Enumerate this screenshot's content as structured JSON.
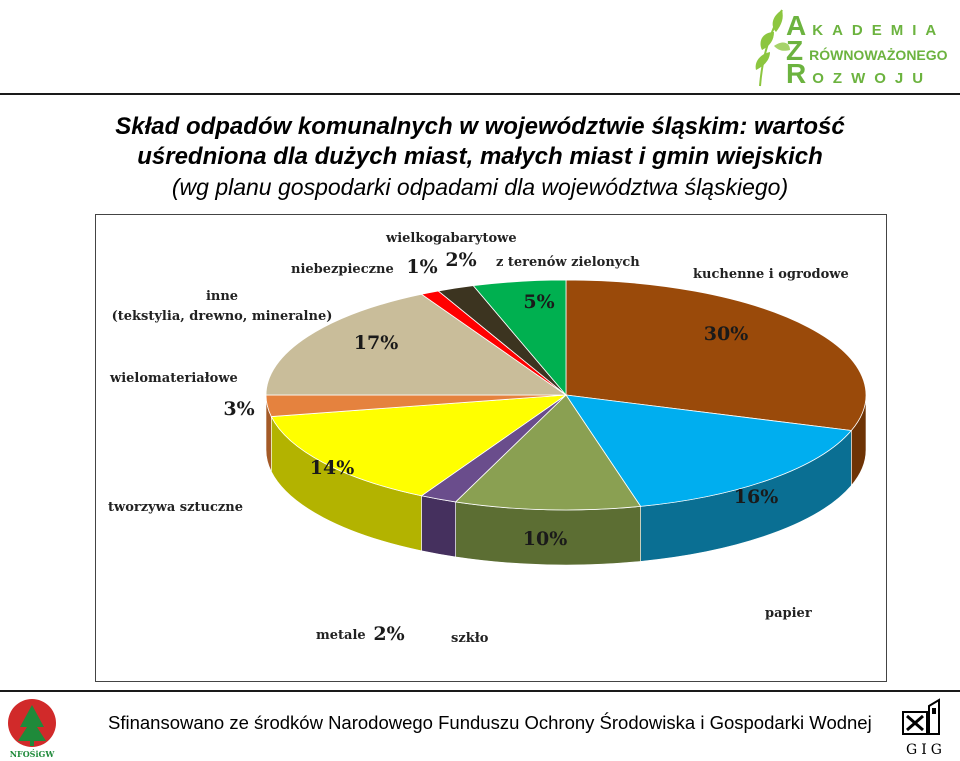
{
  "brand": {
    "letters": [
      "A",
      "Z",
      "R"
    ],
    "words": [
      "KADEMIA",
      "RÓWNOWAŻONEGO",
      "OZWOJU"
    ]
  },
  "title": {
    "line1": "Skład odpadów komunalnych w województwie śląskim: wartość",
    "line2": "uśredniona dla dużych miast, małych miast i gmin wiejskich",
    "line3": "(wg planu gospodarki odpadami dla województwa śląskiego)"
  },
  "chart_data": {
    "type": "pie",
    "title": "Skład odpadów komunalnych w województwie śląskim",
    "slices": [
      {
        "label": "kuchenne i ogrodowe",
        "value": 30,
        "display": "30%",
        "color": "#9a4a0a",
        "side": "#6e3305"
      },
      {
        "label": "papier",
        "value": 16,
        "display": "16%",
        "color": "#00aeef",
        "side": "#0a6f93"
      },
      {
        "label": "szkło",
        "value": 10,
        "display": "10%",
        "color": "#8aa052",
        "side": "#5c6e33"
      },
      {
        "label": "metale",
        "value": 2,
        "display": "2%",
        "color": "#6a4d8c",
        "side": "#45305e"
      },
      {
        "label": "tworzywa sztuczne",
        "value": 14,
        "display": "14%",
        "color": "#ffff00",
        "side": "#b3b300"
      },
      {
        "label": "wielomateriałowe",
        "value": 3,
        "display": "3%",
        "color": "#e5823e",
        "side": "#a45a27"
      },
      {
        "label": "inne (tekstylia, drewno, mineralne)",
        "label_line1": "inne",
        "label_line2": "(tekstylia, drewno, mineralne)",
        "value": 17,
        "display": "17%",
        "color": "#c9bd9a",
        "side": "#8f8466"
      },
      {
        "label": "niebezpieczne",
        "value": 1,
        "display": "1%",
        "color": "#ff0000",
        "side": "#a00000"
      },
      {
        "label": "wielkogabarytowe",
        "value": 2,
        "display": "2%",
        "color": "#3c3420",
        "side": "#231e12"
      },
      {
        "label": "z terenów zielonych",
        "value": 5,
        "display": "5%",
        "color": "#00b050",
        "side": "#007a37"
      }
    ]
  },
  "footer": {
    "text": "Sfinansowano ze środków Narodowego Funduszu Ochrony Środowiska i Gospodarki Wodnej",
    "left_logo": "NFOŚiGW",
    "right_logo": "GIG"
  }
}
